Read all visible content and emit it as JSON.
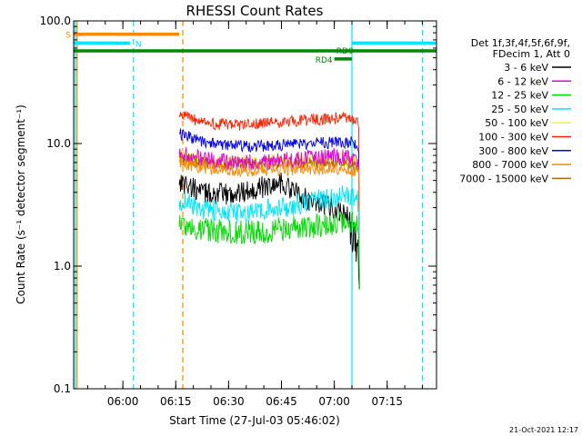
{
  "chart_data": {
    "type": "line",
    "title": "RHESSI Count Rates",
    "xlabel": "Start Time (27-Jul-03 05:46:02)",
    "ylabel": "Count Rate (s⁻¹ detector segment⁻¹)",
    "x_unit": "time of day (HH:MM)",
    "xlim": [
      "05:46:02",
      "07:29:00"
    ],
    "ylim": [
      0.1,
      100.0
    ],
    "y_scale": "log",
    "x_ticks": [
      "06:00",
      "06:15",
      "06:30",
      "06:45",
      "07:00",
      "07:15"
    ],
    "y_ticks": [
      "0.1",
      "1.0",
      "10.0",
      "100.0"
    ],
    "legend_header": [
      "Det 1f,3f,4f,5f,6f,9f,",
      "FDecim 1, Att 0"
    ],
    "legend_position": "right",
    "series": [
      {
        "name": "3 - 6 keV",
        "color": "#000000",
        "x": [
          "06:16",
          "06:22",
          "06:30",
          "06:38",
          "06:45",
          "06:52",
          "07:00",
          "07:04",
          "07:06",
          "07:07"
        ],
        "values": [
          5.0,
          4.0,
          3.8,
          4.3,
          4.8,
          3.5,
          3.0,
          2.5,
          1.5,
          1.0
        ]
      },
      {
        "name": "6 - 12 keV",
        "color": "#e000e0",
        "x": [
          "06:16",
          "06:22",
          "06:30",
          "06:38",
          "06:45",
          "06:52",
          "07:00",
          "07:04",
          "07:06",
          "07:07"
        ],
        "values": [
          8.5,
          7.5,
          7.0,
          7.0,
          7.2,
          7.5,
          7.8,
          7.8,
          7.5,
          7.0
        ]
      },
      {
        "name": "12 - 25 keV",
        "color": "#00dd00",
        "x": [
          "06:16",
          "06:22",
          "06:30",
          "06:38",
          "06:45",
          "06:52",
          "07:00",
          "07:04",
          "07:06",
          "07:07"
        ],
        "values": [
          2.2,
          2.0,
          1.9,
          1.9,
          2.0,
          2.1,
          2.2,
          2.3,
          2.2,
          2.0
        ]
      },
      {
        "name": "25 - 50 keV",
        "color": "#00e5ff",
        "x": [
          "06:16",
          "06:22",
          "06:30",
          "06:38",
          "06:45",
          "06:52",
          "07:00",
          "07:04",
          "07:06",
          "07:07"
        ],
        "values": [
          3.5,
          3.0,
          2.7,
          2.8,
          3.0,
          3.3,
          3.6,
          3.8,
          3.5,
          3.3
        ]
      },
      {
        "name": "50 - 100 keV",
        "color": "#ffff00",
        "x": [
          "06:16",
          "06:22",
          "06:30",
          "06:38",
          "06:45",
          "06:52",
          "07:00",
          "07:04",
          "07:06",
          "07:07"
        ],
        "values": [
          8.0,
          7.2,
          7.0,
          7.0,
          7.1,
          7.2,
          7.3,
          7.4,
          7.0,
          6.8
        ]
      },
      {
        "name": "100 - 300 keV",
        "color": "#ff2200",
        "x": [
          "06:16",
          "06:22",
          "06:30",
          "06:38",
          "06:45",
          "06:52",
          "07:00",
          "07:04",
          "07:06",
          "07:07"
        ],
        "values": [
          17.0,
          15.0,
          14.0,
          14.5,
          15.0,
          15.5,
          16.0,
          16.5,
          15.5,
          14.5
        ]
      },
      {
        "name": "300 - 800 keV",
        "color": "#0000ee",
        "x": [
          "06:16",
          "06:22",
          "06:30",
          "06:38",
          "06:45",
          "06:52",
          "07:00",
          "07:04",
          "07:06",
          "07:07"
        ],
        "values": [
          12.0,
          10.5,
          9.5,
          9.5,
          9.8,
          10.0,
          10.2,
          10.3,
          10.0,
          9.5
        ]
      },
      {
        "name": "800 - 7000 keV",
        "color": "#ff8800",
        "x": [
          "06:16",
          "06:22",
          "06:30",
          "06:38",
          "06:45",
          "06:52",
          "07:00",
          "07:04",
          "07:06",
          "07:07"
        ],
        "values": [
          7.0,
          6.4,
          6.0,
          6.0,
          6.1,
          6.2,
          6.2,
          6.1,
          5.8,
          5.5
        ]
      },
      {
        "name": "7000 - 15000 keV",
        "color": "#b06a00",
        "x": [
          "06:16",
          "06:22",
          "06:30",
          "06:38",
          "06:45",
          "06:52",
          "07:00",
          "07:04",
          "07:06",
          "07:07"
        ],
        "values": [
          7.5,
          7.0,
          6.8,
          6.8,
          6.9,
          7.0,
          7.0,
          6.9,
          6.6,
          6.2
        ]
      }
    ],
    "annotations": [
      {
        "label": "S",
        "color": "#ff8800",
        "x_start": "05:46:02",
        "x_end": "06:16",
        "y": 78
      },
      {
        "label": "N",
        "color": "#00e5ff",
        "x_start": "05:46:02",
        "x_end": "06:02",
        "y": 66
      },
      {
        "label": "N",
        "color": "#00e5ff",
        "x_start": "07:05",
        "x_end": "07:29",
        "y": 66
      },
      {
        "label": "RD0",
        "color": "#008800",
        "x_start": "05:46:02",
        "x_end": "07:29",
        "y": 57
      },
      {
        "label": "RD4",
        "color": "#008800",
        "x_start": "07:00",
        "x_end": "07:05",
        "y": 49
      }
    ],
    "vertical_lines": [
      {
        "x": "05:47:00",
        "color": "#ff8800",
        "style": "solid"
      },
      {
        "x": "05:46:30",
        "color": "#00e5ff",
        "style": "solid"
      },
      {
        "x": "06:03",
        "color": "#00e5ff",
        "style": "dashed"
      },
      {
        "x": "06:17",
        "color": "#ff8800",
        "style": "dashed"
      },
      {
        "x": "07:05",
        "color": "#00e5ff",
        "style": "solid"
      },
      {
        "x": "07:25",
        "color": "#00e5ff",
        "style": "dashed"
      }
    ],
    "footer_timestamp": "21-Oct-2021 12:17"
  }
}
